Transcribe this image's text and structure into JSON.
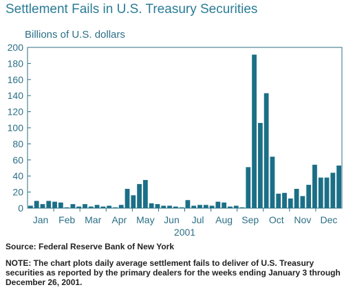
{
  "title": "Settlement Fails in U.S. Treasury Securities",
  "unit_label": "Billions of U.S. dollars",
  "source": "Source: Federal Reserve Bank of New York",
  "note": "NOTE: The chart plots daily average settlement fails to deliver of U.S. Treasury securities as reported by the primary dealers for the weeks ending January 3 through December 26, 2001.",
  "colors": {
    "bar": "#1b6f86",
    "axis": "#2a6f86",
    "grid": "#d0dde2",
    "title": "#2a7c96"
  },
  "chart_data": {
    "type": "bar",
    "title": "Settlement Fails in U.S. Treasury Securities",
    "ylabel": "Billions of U.S. dollars",
    "xlabel": "2001",
    "ylim": [
      0,
      200
    ],
    "yticks": [
      0,
      20,
      40,
      60,
      80,
      100,
      120,
      140,
      160,
      180,
      200
    ],
    "month_labels": [
      "Jan",
      "Feb",
      "Mar",
      "Apr",
      "May",
      "Jun",
      "Jul",
      "Aug",
      "Sep",
      "Oct",
      "Nov",
      "Dec"
    ],
    "year_label": "2001",
    "grid": false,
    "values": [
      3,
      9,
      5,
      9,
      8,
      7,
      1,
      5,
      2,
      5,
      2,
      4,
      2,
      3,
      1,
      4,
      24,
      16,
      30,
      35,
      6,
      5,
      3,
      3,
      2,
      1,
      10,
      3,
      4,
      4,
      3,
      8,
      7,
      2,
      3,
      1,
      51,
      191,
      106,
      143,
      64,
      18,
      19,
      12,
      24,
      15,
      29,
      54,
      38,
      38,
      44,
      53
    ]
  }
}
